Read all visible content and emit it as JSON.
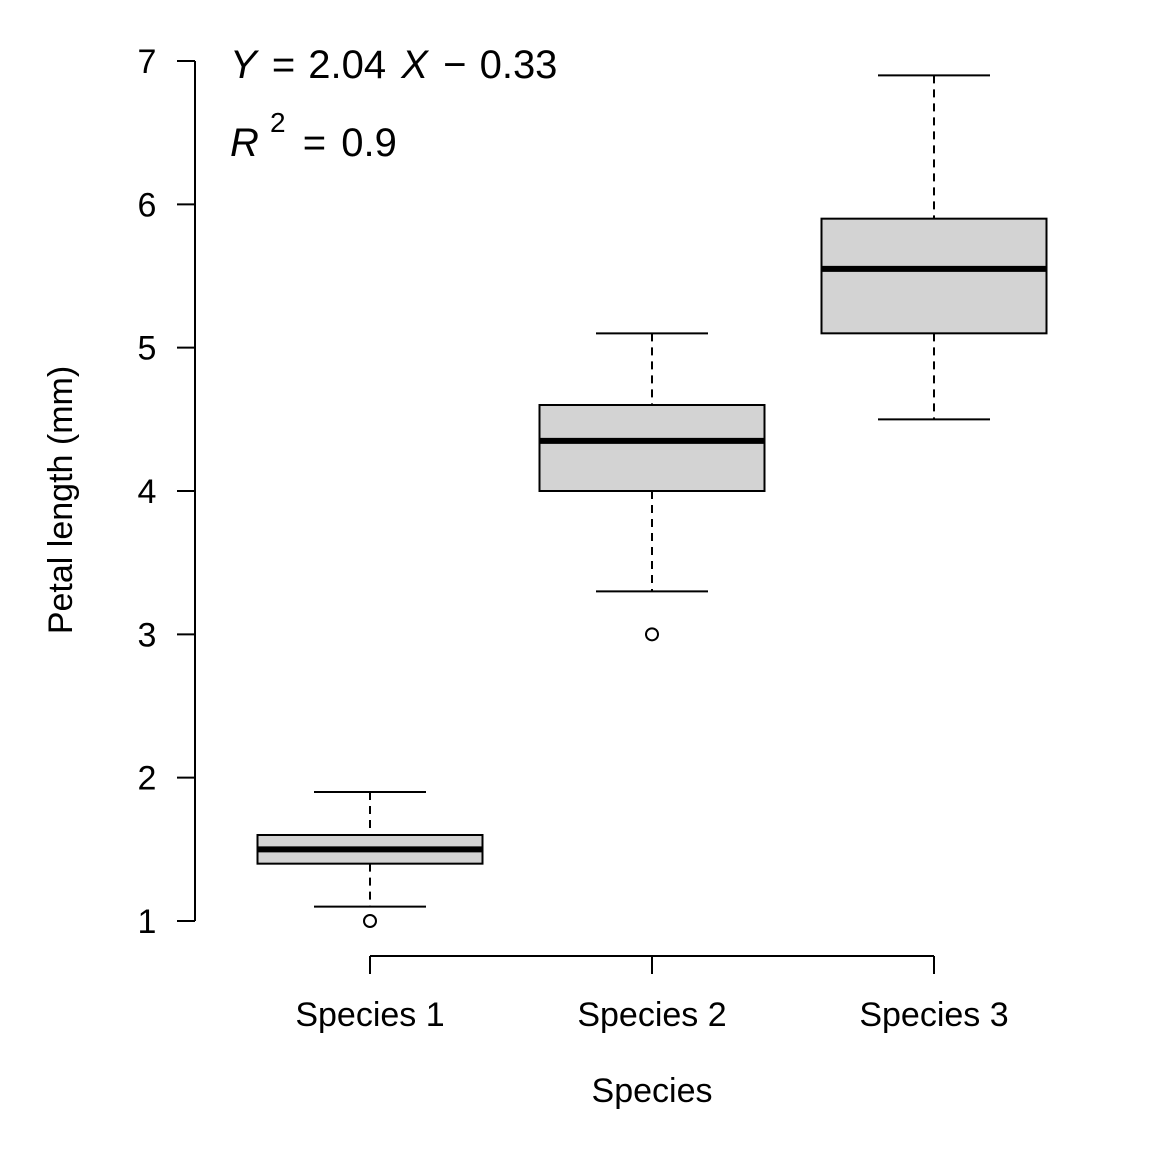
{
  "chart_data": {
    "type": "box",
    "title": "",
    "xlabel": "Species",
    "ylabel": "Petal length (mm)",
    "ylim": [
      1,
      7
    ],
    "yticks": [
      1,
      2,
      3,
      4,
      5,
      6,
      7
    ],
    "categories": [
      "Species 1",
      "Species 2",
      "Species 3"
    ],
    "boxes": [
      {
        "name": "Species 1",
        "whisker_low": 1.1,
        "q1": 1.4,
        "median": 1.5,
        "q3": 1.6,
        "whisker_high": 1.9,
        "outliers": [
          1.0
        ]
      },
      {
        "name": "Species 2",
        "whisker_low": 3.3,
        "q1": 4.0,
        "median": 4.35,
        "q3": 4.6,
        "whisker_high": 5.1,
        "outliers": [
          3.0
        ]
      },
      {
        "name": "Species 3",
        "whisker_low": 4.5,
        "q1": 5.1,
        "median": 5.55,
        "q3": 5.9,
        "whisker_high": 6.9,
        "outliers": []
      }
    ],
    "box_fill": "#d3d3d3",
    "grid": false,
    "annotations": {
      "equation": {
        "y_var": "Y",
        "eq": "=",
        "slope": "2.04",
        "x_var": "X",
        "minus": "−",
        "intercept": "0.33"
      },
      "r2": {
        "var": "R",
        "exp": "2",
        "eq": "=",
        "value": "0.9"
      }
    }
  }
}
